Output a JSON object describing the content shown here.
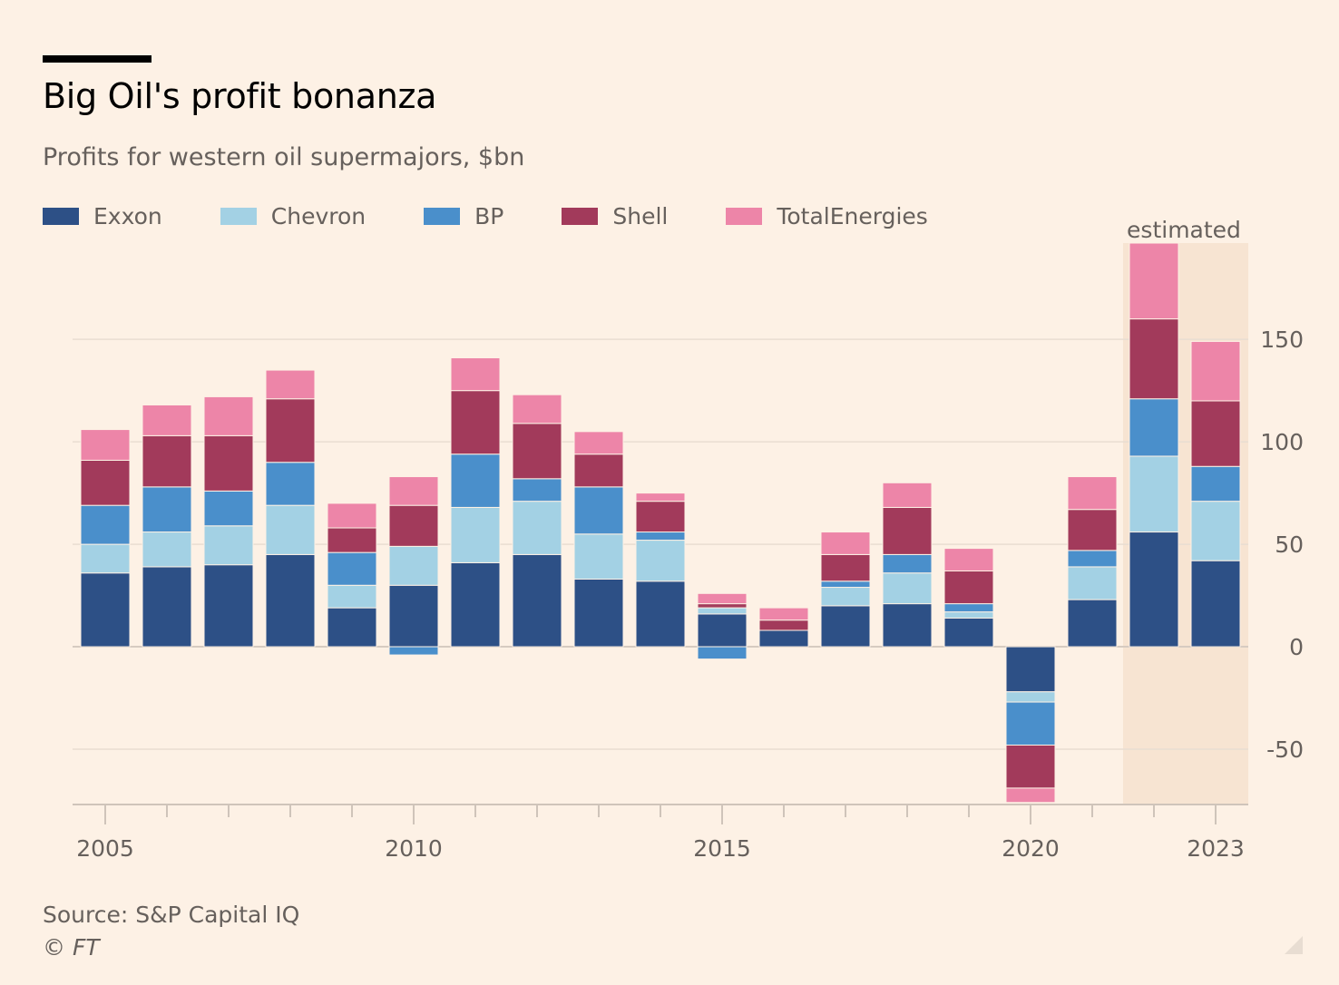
{
  "header": {
    "title": "Big Oil's profit bonanza",
    "subtitle": "Profits for western oil supermajors, $bn"
  },
  "footer": {
    "source": "Source: S&P Capital IQ",
    "copyright": "© FT"
  },
  "colors": {
    "background": "#fdf1e5",
    "estimated_band": "#f7e4d2",
    "grid": "#e9ddd2",
    "axis": "#cfc4ba"
  },
  "chart_data": {
    "type": "bar",
    "stacked": true,
    "title": "Big Oil's profit bonanza",
    "subtitle": "Profits for western oil supermajors, $bn",
    "x": [
      2005,
      2006,
      2007,
      2008,
      2009,
      2010,
      2011,
      2012,
      2013,
      2014,
      2015,
      2016,
      2017,
      2018,
      2019,
      2020,
      2021,
      2022,
      2023
    ],
    "x_tick_labels": [
      "2005",
      "2010",
      "2015",
      "2020",
      "2023"
    ],
    "x_tick_values": [
      2005,
      2010,
      2015,
      2020,
      2023
    ],
    "ylim": [
      -77,
      197
    ],
    "y_ticks": [
      -50,
      0,
      50,
      100,
      150
    ],
    "y_tick_labels": [
      "-50",
      "0",
      "50",
      "100",
      "150"
    ],
    "y_axis_position": "right",
    "grid": true,
    "legend_position": "top-left",
    "annotation": {
      "label": "estimated",
      "years": [
        2022,
        2023
      ]
    },
    "series": [
      {
        "name": "Exxon",
        "color": "#2d5086",
        "values": [
          36,
          39,
          40,
          45,
          19,
          30,
          41,
          45,
          33,
          32,
          16,
          8,
          20,
          21,
          14,
          -22,
          23,
          56,
          42
        ]
      },
      {
        "name": "Chevron",
        "color": "#a3d1e4",
        "values": [
          14,
          17,
          19,
          24,
          11,
          19,
          27,
          26,
          22,
          20,
          3,
          0,
          9,
          15,
          3,
          -5,
          16,
          37,
          29
        ]
      },
      {
        "name": "BP",
        "color": "#4a8fcb",
        "values": [
          19,
          22,
          17,
          21,
          16,
          -4,
          26,
          11,
          23,
          4,
          -6,
          0,
          3,
          9,
          4,
          -21,
          8,
          28,
          17
        ]
      },
      {
        "name": "Shell",
        "color": "#a23a5b",
        "values": [
          22,
          25,
          27,
          31,
          12,
          20,
          31,
          27,
          16,
          15,
          2,
          5,
          13,
          23,
          16,
          -21,
          20,
          39,
          32
        ]
      },
      {
        "name": "TotalEnergies",
        "color": "#ed85a8",
        "values": [
          15,
          15,
          19,
          14,
          12,
          14,
          16,
          14,
          11,
          4,
          5,
          6,
          11,
          12,
          11,
          -7,
          16,
          37,
          29
        ]
      }
    ]
  }
}
